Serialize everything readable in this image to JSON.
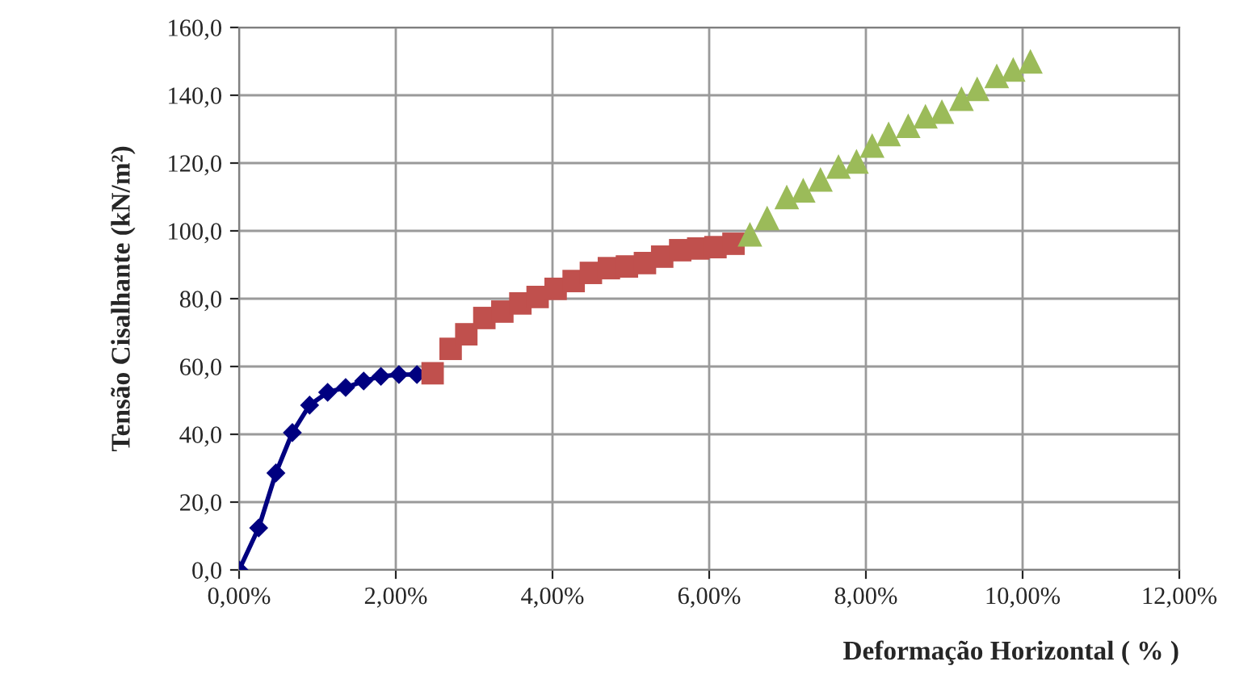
{
  "chart_data": {
    "type": "line",
    "xlabel": "Deformação Horizontal ( % )",
    "ylabel": "Tensão Cisalhante (kN/m²)",
    "series": [
      {
        "color": "#000080",
        "marker": "diamond",
        "x": [
          0,
          0.25,
          0.47,
          0.68,
          0.9,
          1.13,
          1.36,
          1.59,
          1.81,
          2.04,
          2.27
        ],
        "values": [
          0,
          12.4,
          28.6,
          40.5,
          48.6,
          52.4,
          53.8,
          55.7,
          57.1,
          57.6,
          57.6
        ]
      },
      {
        "type": "scatter",
        "color": "#c0504d",
        "marker": "square",
        "x": [
          2.47,
          2.7,
          2.9,
          3.13,
          3.36,
          3.59,
          3.81,
          4.04,
          4.27,
          4.49,
          4.72,
          4.95,
          5.18,
          5.4,
          5.63,
          5.86,
          6.08,
          6.31
        ],
        "values": [
          58,
          65.2,
          69.5,
          74.3,
          76.2,
          78.6,
          80.5,
          82.9,
          85.2,
          87.6,
          89,
          89.5,
          90.5,
          92.4,
          94.3,
          94.8,
          95.2,
          96.2
        ]
      },
      {
        "type": "scatter",
        "color": "#9bbb59",
        "marker": "triangle",
        "x": [
          6.52,
          6.74,
          6.99,
          7.2,
          7.42,
          7.65,
          7.88,
          8.08,
          8.29,
          8.54,
          8.76,
          8.97,
          9.22,
          9.42,
          9.67,
          9.88,
          10.1
        ],
        "values": [
          99,
          103.8,
          110,
          112,
          115.2,
          119,
          120.5,
          125.2,
          128.6,
          131,
          133.8,
          135.2,
          139,
          141.9,
          145.7,
          147.6,
          150
        ]
      }
    ],
    "xlim": [
      0,
      12
    ],
    "ylim": [
      0,
      160
    ],
    "xticks": [
      {
        "value": 0,
        "label": "0,00%"
      },
      {
        "value": 2,
        "label": "2,00%"
      },
      {
        "value": 4,
        "label": "4,00%"
      },
      {
        "value": 6,
        "label": "6,00%"
      },
      {
        "value": 8,
        "label": "8,00%"
      },
      {
        "value": 10,
        "label": "10,00%"
      },
      {
        "value": 12,
        "label": "12,00%"
      }
    ],
    "yticks": [
      {
        "value": 0,
        "label": "0,0"
      },
      {
        "value": 20,
        "label": "20,0"
      },
      {
        "value": 40,
        "label": "40,0"
      },
      {
        "value": 60,
        "label": "60,0"
      },
      {
        "value": 80,
        "label": "80,0"
      },
      {
        "value": 100,
        "label": "100,0"
      },
      {
        "value": 120,
        "label": "120,0"
      },
      {
        "value": 140,
        "label": "140,0"
      },
      {
        "value": 160,
        "label": "160,0"
      }
    ],
    "grid": true
  }
}
